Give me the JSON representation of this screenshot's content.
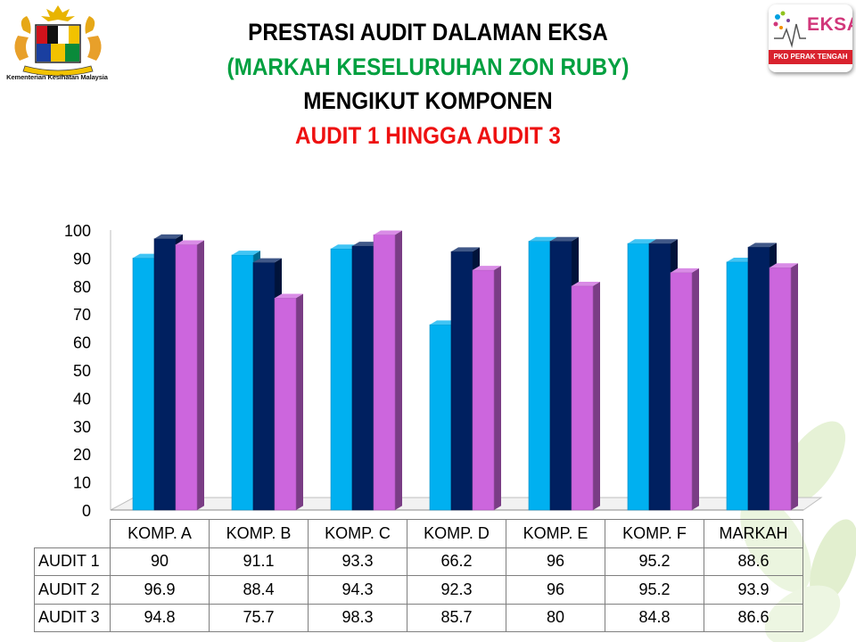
{
  "header": {
    "title_line1": "PRESTASI AUDIT DALAMAN EKSA",
    "title_line2": "(MARKAH KESELURUHAN ZON RUBY)",
    "title_line3": "MENGIKUT KOMPONEN",
    "title_line4": "AUDIT 1 HINGGA AUDIT 3"
  },
  "logos": {
    "left_caption": "Kementerian Kesihatan Malaysia",
    "right_word": "EKSA",
    "right_band": "PKD PERAK TENGAH"
  },
  "colors": {
    "audit1": "#00b0f0",
    "audit2": "#002060",
    "audit3": "#cc66dd"
  },
  "chart_data": {
    "type": "bar",
    "categories": [
      "KOMP. A",
      "KOMP. B",
      "KOMP. C",
      "KOMP. D",
      "KOMP. E",
      "KOMP. F",
      "MARKAH"
    ],
    "series": [
      {
        "name": "AUDIT 1",
        "values": [
          90,
          91.1,
          93.3,
          66.2,
          96,
          95.2,
          88.6
        ]
      },
      {
        "name": "AUDIT 2",
        "values": [
          96.9,
          88.4,
          94.3,
          92.3,
          96,
          95.2,
          93.9
        ]
      },
      {
        "name": "AUDIT 3",
        "values": [
          94.8,
          75.7,
          98.3,
          85.7,
          80,
          84.8,
          86.6
        ]
      }
    ],
    "ylim": [
      0,
      100
    ],
    "yticks": [
      "0",
      "10",
      "20",
      "30",
      "40",
      "50",
      "60",
      "70",
      "80",
      "90",
      "100"
    ],
    "data_table": true,
    "grid": false
  }
}
